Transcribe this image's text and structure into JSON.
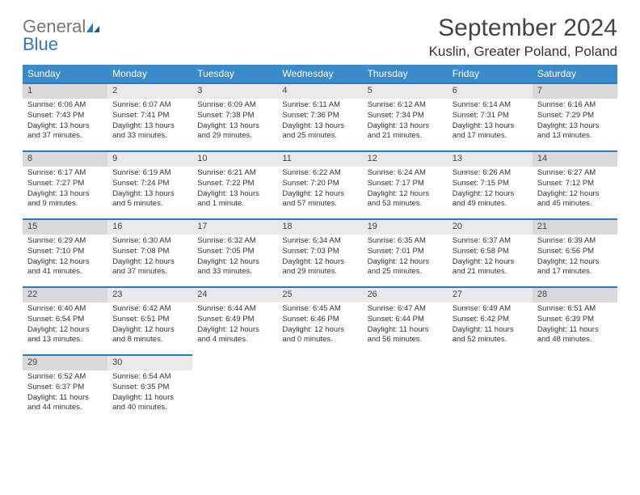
{
  "brand": {
    "line1": "General",
    "line2": "Blue"
  },
  "title": "September 2024",
  "location": "Kuslin, Greater Poland, Poland",
  "dayNames": [
    "Sunday",
    "Monday",
    "Tuesday",
    "Wednesday",
    "Thursday",
    "Friday",
    "Saturday"
  ],
  "colors": {
    "header_bg": "#3a8bc9",
    "accent": "#2b78c5",
    "band_light": "#e9e9e9",
    "band_dark": "#d9d9d9"
  },
  "weeks": [
    [
      {
        "n": "1",
        "sr": "6:06 AM",
        "ss": "7:43 PM",
        "dl": "13 hours and 37 minutes."
      },
      {
        "n": "2",
        "sr": "6:07 AM",
        "ss": "7:41 PM",
        "dl": "13 hours and 33 minutes."
      },
      {
        "n": "3",
        "sr": "6:09 AM",
        "ss": "7:38 PM",
        "dl": "13 hours and 29 minutes."
      },
      {
        "n": "4",
        "sr": "6:11 AM",
        "ss": "7:36 PM",
        "dl": "13 hours and 25 minutes."
      },
      {
        "n": "5",
        "sr": "6:12 AM",
        "ss": "7:34 PM",
        "dl": "13 hours and 21 minutes."
      },
      {
        "n": "6",
        "sr": "6:14 AM",
        "ss": "7:31 PM",
        "dl": "13 hours and 17 minutes."
      },
      {
        "n": "7",
        "sr": "6:16 AM",
        "ss": "7:29 PM",
        "dl": "13 hours and 13 minutes."
      }
    ],
    [
      {
        "n": "8",
        "sr": "6:17 AM",
        "ss": "7:27 PM",
        "dl": "13 hours and 9 minutes."
      },
      {
        "n": "9",
        "sr": "6:19 AM",
        "ss": "7:24 PM",
        "dl": "13 hours and 5 minutes."
      },
      {
        "n": "10",
        "sr": "6:21 AM",
        "ss": "7:22 PM",
        "dl": "13 hours and 1 minute."
      },
      {
        "n": "11",
        "sr": "6:22 AM",
        "ss": "7:20 PM",
        "dl": "12 hours and 57 minutes."
      },
      {
        "n": "12",
        "sr": "6:24 AM",
        "ss": "7:17 PM",
        "dl": "12 hours and 53 minutes."
      },
      {
        "n": "13",
        "sr": "6:26 AM",
        "ss": "7:15 PM",
        "dl": "12 hours and 49 minutes."
      },
      {
        "n": "14",
        "sr": "6:27 AM",
        "ss": "7:12 PM",
        "dl": "12 hours and 45 minutes."
      }
    ],
    [
      {
        "n": "15",
        "sr": "6:29 AM",
        "ss": "7:10 PM",
        "dl": "12 hours and 41 minutes."
      },
      {
        "n": "16",
        "sr": "6:30 AM",
        "ss": "7:08 PM",
        "dl": "12 hours and 37 minutes."
      },
      {
        "n": "17",
        "sr": "6:32 AM",
        "ss": "7:05 PM",
        "dl": "12 hours and 33 minutes."
      },
      {
        "n": "18",
        "sr": "6:34 AM",
        "ss": "7:03 PM",
        "dl": "12 hours and 29 minutes."
      },
      {
        "n": "19",
        "sr": "6:35 AM",
        "ss": "7:01 PM",
        "dl": "12 hours and 25 minutes."
      },
      {
        "n": "20",
        "sr": "6:37 AM",
        "ss": "6:58 PM",
        "dl": "12 hours and 21 minutes."
      },
      {
        "n": "21",
        "sr": "6:39 AM",
        "ss": "6:56 PM",
        "dl": "12 hours and 17 minutes."
      }
    ],
    [
      {
        "n": "22",
        "sr": "6:40 AM",
        "ss": "6:54 PM",
        "dl": "12 hours and 13 minutes."
      },
      {
        "n": "23",
        "sr": "6:42 AM",
        "ss": "6:51 PM",
        "dl": "12 hours and 8 minutes."
      },
      {
        "n": "24",
        "sr": "6:44 AM",
        "ss": "6:49 PM",
        "dl": "12 hours and 4 minutes."
      },
      {
        "n": "25",
        "sr": "6:45 AM",
        "ss": "6:46 PM",
        "dl": "12 hours and 0 minutes."
      },
      {
        "n": "26",
        "sr": "6:47 AM",
        "ss": "6:44 PM",
        "dl": "11 hours and 56 minutes."
      },
      {
        "n": "27",
        "sr": "6:49 AM",
        "ss": "6:42 PM",
        "dl": "11 hours and 52 minutes."
      },
      {
        "n": "28",
        "sr": "6:51 AM",
        "ss": "6:39 PM",
        "dl": "11 hours and 48 minutes."
      }
    ],
    [
      {
        "n": "29",
        "sr": "6:52 AM",
        "ss": "6:37 PM",
        "dl": "11 hours and 44 minutes."
      },
      {
        "n": "30",
        "sr": "6:54 AM",
        "ss": "6:35 PM",
        "dl": "11 hours and 40 minutes."
      },
      null,
      null,
      null,
      null,
      null
    ]
  ],
  "labels": {
    "sunrise": "Sunrise:",
    "sunset": "Sunset:",
    "daylight": "Daylight:"
  }
}
